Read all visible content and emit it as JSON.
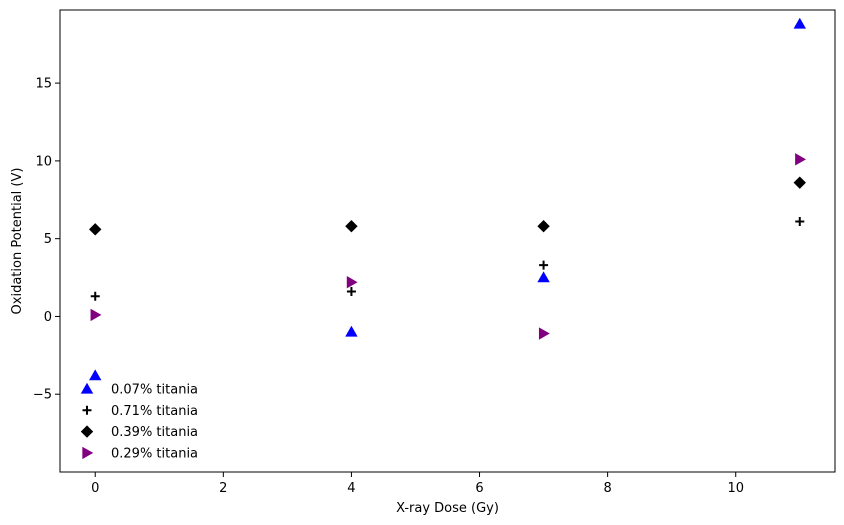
{
  "chart_data": {
    "type": "scatter",
    "title": "",
    "xlabel": "X-ray Dose (Gy)",
    "ylabel": "Oxidation Potential (V)",
    "xlim": [
      -0.55,
      11.55
    ],
    "ylim": [
      -10.0,
      19.7
    ],
    "xticks": [
      0,
      2,
      4,
      6,
      8,
      10
    ],
    "yticks": [
      -5,
      0,
      5,
      10,
      15
    ],
    "ytick_labels": [
      "−5",
      "0",
      "5",
      "10",
      "15"
    ],
    "grid": false,
    "legend_position": "lower-left",
    "series": [
      {
        "name": "0.07% titania",
        "marker": "triangle-up",
        "color": "#0000ff",
        "x": [
          0,
          4,
          7,
          11
        ],
        "y": [
          -3.8,
          -1.0,
          2.5,
          18.8
        ]
      },
      {
        "name": "0.71% titania",
        "marker": "plus",
        "color": "#000000",
        "x": [
          0,
          4,
          7,
          11
        ],
        "y": [
          1.3,
          1.6,
          3.3,
          6.1
        ]
      },
      {
        "name": "0.39% titania",
        "marker": "diamond",
        "color": "#000000",
        "x": [
          0,
          4,
          7,
          11
        ],
        "y": [
          5.6,
          5.8,
          5.8,
          8.6
        ]
      },
      {
        "name": "0.29% titania",
        "marker": "triangle-right",
        "color": "#800080",
        "x": [
          0,
          4,
          7,
          11
        ],
        "y": [
          0.1,
          2.2,
          -1.1,
          10.1
        ]
      }
    ]
  }
}
